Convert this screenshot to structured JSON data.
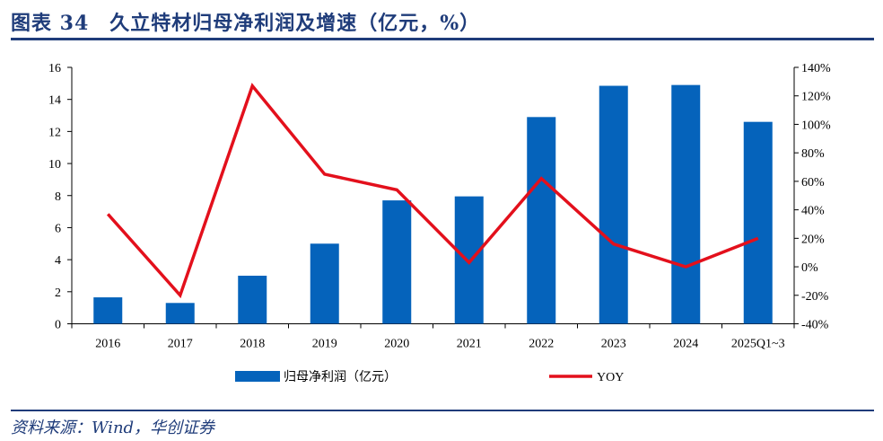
{
  "title": "图表 34　久立特材归母净利润及增速（亿元，%）",
  "source": "资料来源：Wind，华创证券",
  "colors": {
    "bar": "#0563BB",
    "line": "#E3101C",
    "header": "#1F3C7A"
  },
  "chart_data": {
    "type": "bar+line",
    "title": "",
    "categories": [
      "2016",
      "2017",
      "2018",
      "2019",
      "2020",
      "2021",
      "2022",
      "2023",
      "2024",
      "2025Q1~3"
    ],
    "series": [
      {
        "name": "归母净利润（亿元）",
        "type": "bar",
        "axis": "left",
        "values": [
          1.65,
          1.3,
          3.0,
          5.0,
          7.7,
          7.95,
          12.9,
          14.85,
          14.9,
          12.6
        ]
      },
      {
        "name": "YOY",
        "type": "line",
        "axis": "right",
        "values": [
          37,
          -20,
          127,
          65,
          54,
          3,
          62,
          16,
          0,
          20
        ]
      }
    ],
    "left_axis": {
      "ylim": [
        0,
        16
      ],
      "ticks": [
        "0",
        "2",
        "4",
        "6",
        "8",
        "10",
        "12",
        "14",
        "16"
      ]
    },
    "right_axis": {
      "ylim": [
        -40,
        140
      ],
      "ticks": [
        "-40%",
        "-20%",
        "0%",
        "20%",
        "40%",
        "60%",
        "80%",
        "100%",
        "120%",
        "140%"
      ]
    },
    "legend": "bottom",
    "grid": false
  }
}
